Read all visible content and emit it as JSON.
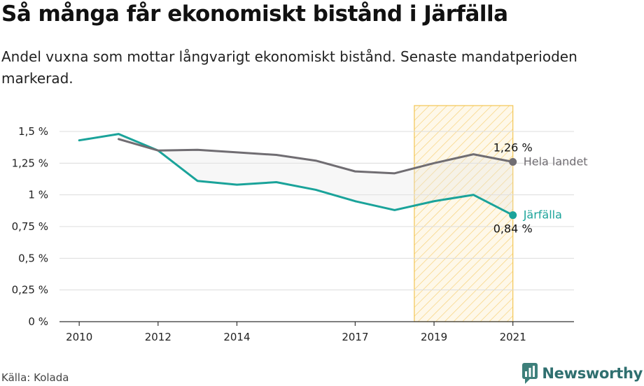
{
  "title": "Så många får ekonomiskt bistånd i Järfälla",
  "subtitle": "Andel vuxna som mottar långvarigt ekonomiskt bistånd. Senaste mandatperioden markerad.",
  "source": "Källa: Kolada",
  "brand": "Newsworthy",
  "colors": {
    "jarfalla": "#1aa39a",
    "national": "#706d72",
    "highlight_fill": "#fbd983",
    "highlight_border": "#f3c653",
    "grid": "#dcdcdc",
    "band": "#e6e6e6",
    "brand": "#2f6f6f"
  },
  "chart_data": {
    "type": "line",
    "x_ticks": [
      2010,
      2012,
      2014,
      2017,
      2019,
      2021
    ],
    "y_ticks": [
      0,
      0.25,
      0.5,
      0.75,
      1,
      1.25,
      1.5
    ],
    "y_tick_labels": [
      "0 %",
      "0,25 %",
      "0,5 %",
      "0,75 %",
      "1 %",
      "1,25 %",
      "1,5 %"
    ],
    "xlim": [
      2009.5,
      2022.55
    ],
    "ylim": [
      0,
      1.5
    ],
    "highlight": {
      "from": 2018.5,
      "to": 2021,
      "label": "Senaste mandatperioden"
    },
    "series": [
      {
        "name": "Järfälla",
        "x": [
          2010,
          2011,
          2012,
          2013,
          2014,
          2015,
          2016,
          2017,
          2018,
          2019,
          2020,
          2021
        ],
        "values": [
          1.43,
          1.48,
          1.35,
          1.11,
          1.08,
          1.1,
          1.04,
          0.95,
          0.88,
          0.95,
          1.0,
          0.84
        ],
        "end_label": "0,84 %"
      },
      {
        "name": "Hela landet",
        "x": [
          2011,
          2012,
          2013,
          2014,
          2015,
          2016,
          2017,
          2018,
          2019,
          2020,
          2021
        ],
        "values": [
          1.44,
          1.35,
          1.355,
          1.335,
          1.315,
          1.27,
          1.185,
          1.17,
          1.25,
          1.32,
          1.26
        ],
        "end_label": "1,26 %"
      }
    ]
  }
}
